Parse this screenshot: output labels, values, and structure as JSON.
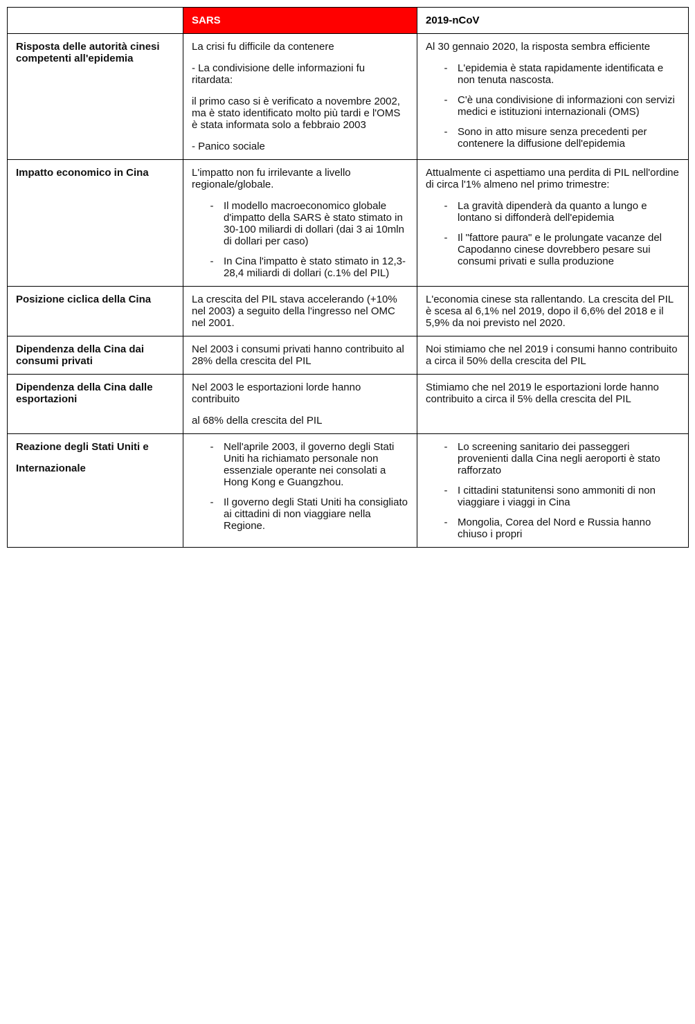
{
  "table": {
    "header": {
      "col0": "",
      "col1": "SARS",
      "col2": "2019-nCoV",
      "col1_bg": "#ff0000",
      "col1_fg": "#ffffff",
      "col2_bg": "#ffffff",
      "col2_fg": "#000000"
    },
    "rows": [
      {
        "label": "Risposta delle autorità cinesi competenti all'epidemia",
        "sars": {
          "blocks": [
            {
              "type": "p",
              "text": "La crisi fu difficile da contenere"
            },
            {
              "type": "p",
              "text": "- La condivisione delle informazioni fu ritardata:"
            },
            {
              "type": "p",
              "text": "il primo caso si è verificato a novembre 2002, ma è stato identificato molto più tardi e l'OMS è stata informata solo a febbraio 2003"
            },
            {
              "type": "p",
              "text": "- Panico sociale"
            }
          ]
        },
        "ncov": {
          "blocks": [
            {
              "type": "p",
              "text": "Al 30 gennaio 2020, la risposta sembra efficiente"
            },
            {
              "type": "ul",
              "items": [
                "L'epidemia è stata rapidamente identificata e non tenuta nascosta.",
                "C'è una condivisione di informazioni con servizi medici e istituzioni internazionali (OMS)",
                "Sono in atto misure senza precedenti per contenere la diffusione dell'epidemia"
              ]
            }
          ]
        }
      },
      {
        "label": "Impatto economico in Cina",
        "sars": {
          "blocks": [
            {
              "type": "p",
              "text": "L'impatto non fu irrilevante a livello regionale/globale."
            },
            {
              "type": "ul",
              "items": [
                "Il modello macroeconomico globale d'impatto della SARS è stato stimato in 30-100 miliardi di dollari (dai 3 ai 10mln di dollari per caso)",
                "In Cina l'impatto è stato stimato in 12,3-28,4 miliardi di dollari (c.1% del PIL)"
              ]
            }
          ]
        },
        "ncov": {
          "blocks": [
            {
              "type": "p",
              "text": "Attualmente ci aspettiamo una perdita di PIL nell'ordine di circa l'1% almeno nel primo trimestre:"
            },
            {
              "type": "ul",
              "items": [
                "La gravità dipenderà da quanto a lungo e lontano si diffonderà dell'epidemia",
                "Il \"fattore paura\" e le prolungate vacanze del Capodanno cinese dovrebbero pesare sui consumi privati e sulla produzione"
              ]
            }
          ]
        }
      },
      {
        "label": "Posizione ciclica della Cina",
        "sars": {
          "blocks": [
            {
              "type": "p",
              "text": "La crescita del PIL stava accelerando (+10% nel 2003) a seguito della l'ingresso nel OMC nel 2001."
            }
          ]
        },
        "ncov": {
          "blocks": [
            {
              "type": "p",
              "text": "L'economia cinese sta rallentando. La crescita del PIL è scesa al 6,1% nel 2019, dopo il 6,6% del 2018 e il 5,9% da noi previsto nel 2020."
            }
          ]
        }
      },
      {
        "label": "Dipendenza della Cina dai consumi privati",
        "sars": {
          "blocks": [
            {
              "type": "p",
              "text": "Nel 2003 i consumi privati hanno contribuito al 28% della crescita del PIL"
            }
          ]
        },
        "ncov": {
          "blocks": [
            {
              "type": "p",
              "text": "Noi stimiamo che nel 2019 i consumi hanno contribuito a circa il 50% della crescita del PIL"
            }
          ]
        }
      },
      {
        "label": "Dipendenza della Cina dalle esportazioni",
        "sars": {
          "blocks": [
            {
              "type": "p",
              "text": "Nel 2003 le esportazioni lorde hanno contribuito"
            },
            {
              "type": "p",
              "text": "al 68% della crescita del PIL"
            }
          ]
        },
        "ncov": {
          "blocks": [
            {
              "type": "p",
              "text": "Stimiamo che nel 2019 le esportazioni lorde hanno contribuito a circa il 5% della crescita del PIL"
            }
          ]
        }
      },
      {
        "label_blocks": [
          "Reazione degli Stati Uniti e",
          "Internazionale"
        ],
        "sars": {
          "blocks": [
            {
              "type": "ul",
              "items": [
                "Nell'aprile 2003, il governo degli Stati Uniti ha richiamato personale non essenziale operante nei consolati a Hong Kong e Guangzhou.",
                "Il governo degli Stati Uniti ha consigliato ai cittadini di non viaggiare nella Regione."
              ]
            }
          ]
        },
        "ncov": {
          "blocks": [
            {
              "type": "ul",
              "items": [
                "Lo screening sanitario dei passeggeri provenienti dalla Cina negli aeroporti è stato rafforzato",
                "I cittadini statunitensi sono ammoniti di non viaggiare i viaggi in Cina",
                "Mongolia, Corea del Nord e Russia hanno chiuso i propri"
              ]
            }
          ]
        }
      }
    ]
  }
}
